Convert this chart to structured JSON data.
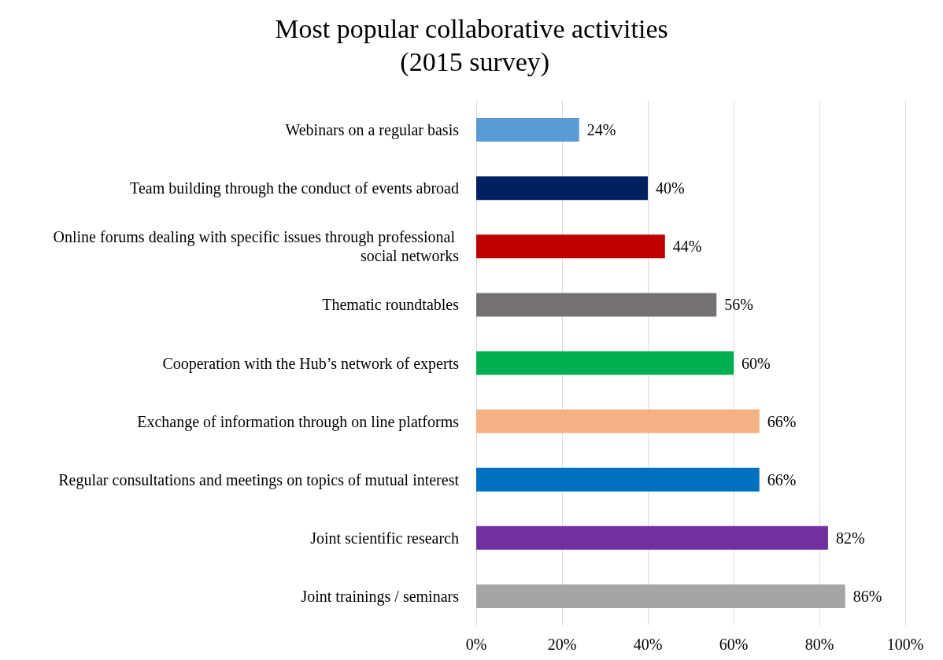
{
  "chart_data": {
    "type": "bar",
    "orientation": "horizontal",
    "title": "Most popular collaborative activities (2015 survey)",
    "categories": [
      "Webinars on a regular basis",
      "Team building through the conduct of events abroad",
      "Online forums dealing with specific issues through professional social networks",
      "Thematic roundtables",
      "Cooperation with the Hub’s network of experts",
      "Exchange of information through on line platforms",
      "Regular consultations and meetings on topics of mutual interest",
      "Joint scientific research",
      "Joint trainings / seminars"
    ],
    "values": [
      24,
      40,
      44,
      56,
      60,
      66,
      66,
      82,
      86
    ],
    "value_labels": [
      "24%",
      "40%",
      "44%",
      "56%",
      "60%",
      "66%",
      "66%",
      "82%",
      "86%"
    ],
    "colors": [
      "#5b9bd5",
      "#002060",
      "#c00000",
      "#767171",
      "#00b050",
      "#f4b183",
      "#0070c0",
      "#7030a0",
      "#a5a5a5"
    ],
    "xlim": [
      0,
      100
    ],
    "xticks": [
      {
        "value": 0,
        "label": "0%"
      },
      {
        "value": 20,
        "label": "20%"
      },
      {
        "value": 40,
        "label": "40%"
      },
      {
        "value": 60,
        "label": "60%"
      },
      {
        "value": 80,
        "label": "80%"
      },
      {
        "value": 100,
        "label": "100%"
      }
    ],
    "grid": "x"
  }
}
